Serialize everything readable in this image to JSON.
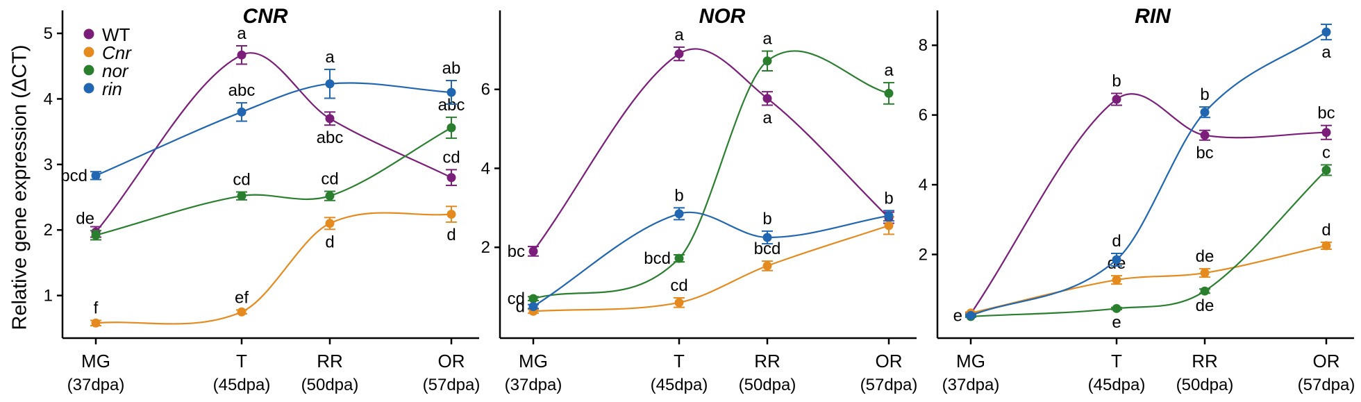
{
  "chart_data": {
    "type": "line",
    "ylabel": "Relative gene expression (ΔCT)",
    "colors": {
      "WT": "#7B1E7A",
      "Cnr": "#E58A1F",
      "nor": "#2A7F2E",
      "rin": "#2166B0"
    },
    "legend": {
      "placement": "top-left",
      "entries": [
        {
          "key": "WT",
          "label": "WT",
          "italic": false
        },
        {
          "key": "Cnr",
          "label": "Cnr",
          "italic": true
        },
        {
          "key": "nor",
          "label": "nor",
          "italic": true
        },
        {
          "key": "rin",
          "label": "rin",
          "italic": true
        }
      ]
    },
    "x": [
      37,
      45,
      50,
      57
    ],
    "categories": [
      {
        "stage": "MG",
        "day": "(37dpa)"
      },
      {
        "stage": "T",
        "day": "(45dpa)"
      },
      {
        "stage": "RR",
        "day": "(50dpa)"
      },
      {
        "stage": "OR",
        "day": "(57dpa)"
      }
    ],
    "panels": [
      {
        "title": "CNR",
        "ylim": [
          0.35,
          5.35
        ],
        "yticks": [
          1,
          2,
          3,
          4,
          5
        ],
        "series": [
          {
            "name": "WT",
            "values": [
              1.97,
              4.67,
              3.7,
              2.8
            ],
            "errors": [
              0.08,
              0.14,
              0.1,
              0.12
            ],
            "labels": [
              "de",
              "a",
              "abc",
              "cd"
            ]
          },
          {
            "name": "Cnr",
            "values": [
              0.58,
              0.75,
              2.1,
              2.24
            ],
            "errors": [
              0.04,
              0.03,
              0.09,
              0.12
            ],
            "labels": [
              "f",
              "ef",
              "d",
              "d"
            ]
          },
          {
            "name": "nor",
            "values": [
              1.92,
              2.52,
              2.52,
              3.56
            ],
            "errors": [
              0.07,
              0.06,
              0.07,
              0.16
            ],
            "labels": [
              "",
              "cd",
              "cd",
              "abc"
            ]
          },
          {
            "name": "rin",
            "values": [
              2.83,
              3.8,
              4.23,
              4.1
            ],
            "errors": [
              0.06,
              0.14,
              0.22,
              0.18
            ],
            "labels": [
              "bcd",
              "abc",
              "a",
              "ab"
            ]
          }
        ]
      },
      {
        "title": "NOR",
        "ylim": [
          -0.3,
          8.0
        ],
        "yticks": [
          2,
          4,
          6
        ],
        "series": [
          {
            "name": "WT",
            "values": [
              1.9,
              6.9,
              5.77,
              2.75
            ],
            "errors": [
              0.12,
              0.17,
              0.17,
              0.14
            ],
            "labels": [
              "bc",
              "a",
              "a",
              ""
            ]
          },
          {
            "name": "Cnr",
            "values": [
              0.38,
              0.6,
              1.53,
              2.55
            ],
            "errors": [
              0.05,
              0.12,
              0.12,
              0.22
            ],
            "labels": [
              "",
              "cd",
              "bcd",
              ""
            ]
          },
          {
            "name": "nor",
            "values": [
              0.7,
              1.72,
              6.72,
              5.9
            ],
            "errors": [
              0.05,
              0.09,
              0.25,
              0.27
            ],
            "labels": [
              "cd",
              "bcd",
              "a",
              "a"
            ]
          },
          {
            "name": "rin",
            "values": [
              0.5,
              2.85,
              2.25,
              2.8
            ],
            "errors": [
              0.05,
              0.15,
              0.16,
              0.13
            ],
            "labels": [
              "d",
              "b",
              "b",
              "b"
            ]
          }
        ]
      },
      {
        "title": "RIN",
        "ylim": [
          -0.4,
          9.0
        ],
        "yticks": [
          2,
          4,
          6,
          8
        ],
        "series": [
          {
            "name": "WT",
            "values": [
              0.3,
              6.45,
              5.42,
              5.5
            ],
            "errors": [
              0.03,
              0.17,
              0.14,
              0.2
            ],
            "labels": [
              "",
              "b",
              "bc",
              "bc"
            ]
          },
          {
            "name": "Cnr",
            "values": [
              0.32,
              1.27,
              1.47,
              2.25
            ],
            "errors": [
              0.03,
              0.12,
              0.12,
              0.1
            ],
            "labels": [
              "",
              "de",
              "de",
              "d"
            ]
          },
          {
            "name": "nor",
            "values": [
              0.22,
              0.45,
              0.95,
              4.42
            ],
            "errors": [
              0.02,
              0.03,
              0.06,
              0.15
            ],
            "labels": [
              "",
              "e",
              "de",
              "c"
            ]
          },
          {
            "name": "rin",
            "values": [
              0.25,
              1.85,
              6.08,
              8.38
            ],
            "errors": [
              0.03,
              0.18,
              0.15,
              0.22
            ],
            "labels": [
              "e",
              "d",
              "b",
              "a"
            ]
          }
        ]
      }
    ]
  }
}
